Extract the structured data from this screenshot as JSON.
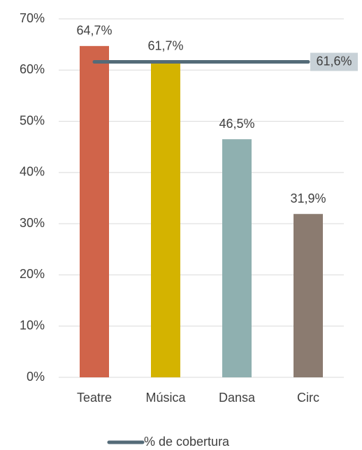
{
  "chart_data": {
    "type": "bar",
    "categories": [
      "Teatre",
      "Música",
      "Dansa",
      "Circ"
    ],
    "values": [
      64.7,
      61.7,
      46.5,
      31.9
    ],
    "value_labels": [
      "64,7%",
      "61,7%",
      "46,5%",
      "31,9%"
    ],
    "colors": [
      "#d0644a",
      "#d4b300",
      "#8fb0b0",
      "#8b7b70"
    ],
    "label_colors": [
      "#c0503a",
      "#b39a00",
      "#6f9c9c",
      "#6b5a50"
    ],
    "ylim": [
      0,
      70
    ],
    "yticks": [
      {
        "value": 0,
        "label": "0%"
      },
      {
        "value": 10,
        "label": "10%"
      },
      {
        "value": 20,
        "label": "20%"
      },
      {
        "value": 30,
        "label": "30%"
      },
      {
        "value": 40,
        "label": "40%"
      },
      {
        "value": 50,
        "label": "50%"
      },
      {
        "value": 60,
        "label": "60%"
      },
      {
        "value": 70,
        "label": "70%"
      }
    ],
    "grid": true,
    "reference_line": {
      "name": "% de cobertura",
      "value": 61.6,
      "label": "61,6%",
      "color": "#546b78"
    },
    "legend": "bottom"
  }
}
